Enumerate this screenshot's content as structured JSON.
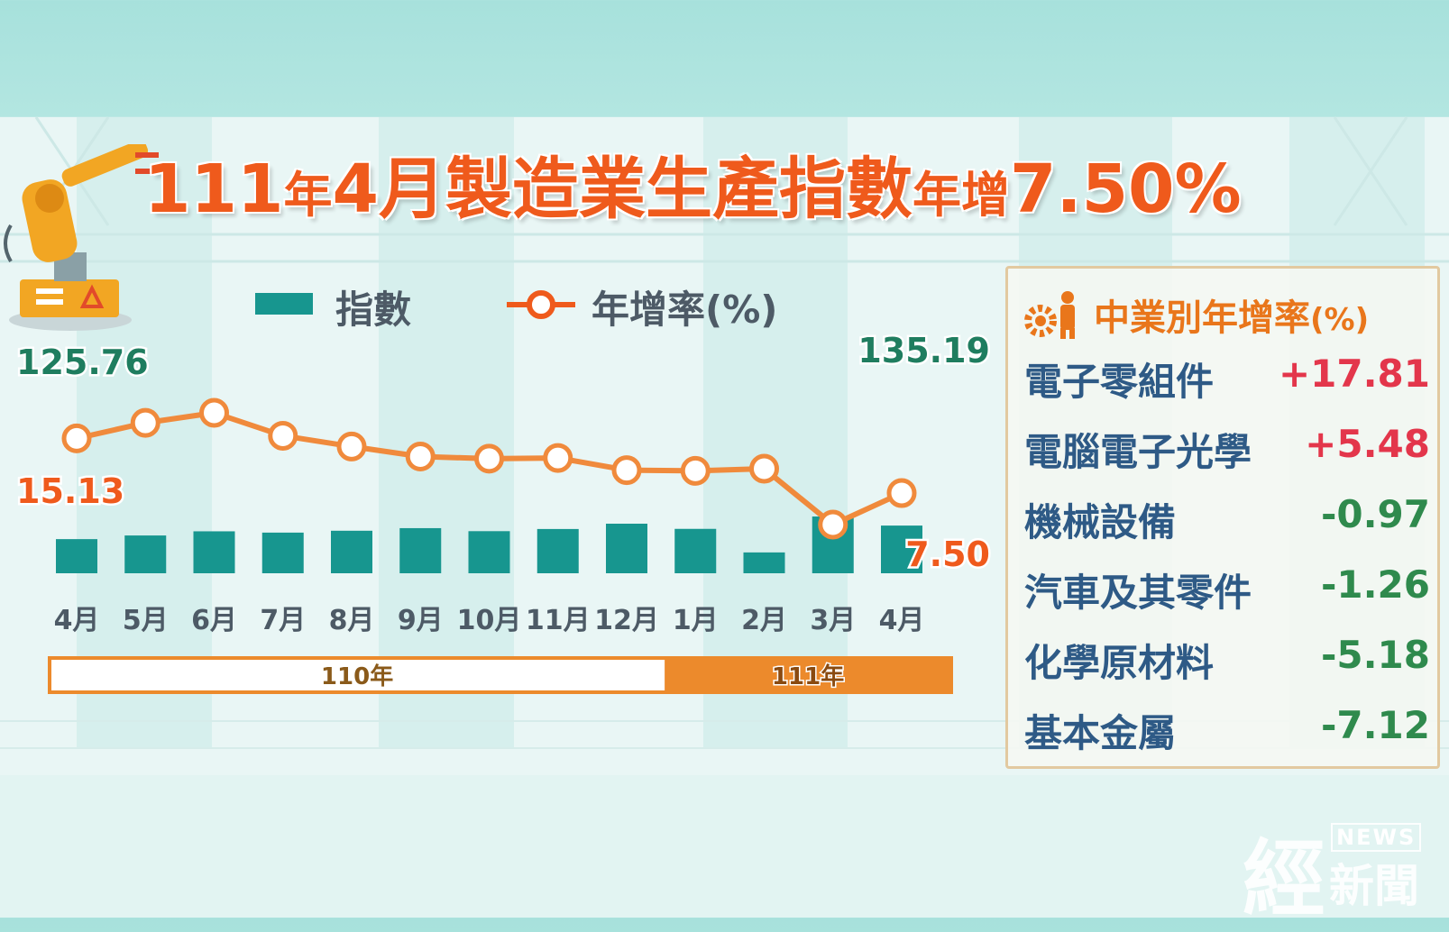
{
  "title_parts": {
    "p1": "111",
    "p2": "年",
    "p3": "4月",
    "p4": "製造業生產指數",
    "p5": "年增",
    "p6": "7.50%"
  },
  "legend": {
    "bar_label": "指數",
    "line_label": "年增率(%)"
  },
  "colors": {
    "bar": "#17968f",
    "line": "#f08a3c",
    "title": "#ef5a1c",
    "positive": "#e3364b",
    "negative": "#2f8a4d",
    "index_label": "#1f7d5f",
    "industry_name": "#2e5a86",
    "year_bar_fill": "#ec8a2c"
  },
  "chart_data": {
    "type": "bar",
    "categories": [
      "4月",
      "5月",
      "6月",
      "7月",
      "8月",
      "9月",
      "10月",
      "11月",
      "12月",
      "1月",
      "2月",
      "3月",
      "4月"
    ],
    "series": [
      {
        "name": "指數",
        "type": "bar",
        "values": [
          125.76,
          128.3,
          131.2,
          130.3,
          131.6,
          133.4,
          131.3,
          132.8,
          136.5,
          132.9,
          116.5,
          141.5,
          135.19
        ]
      },
      {
        "name": "年增率(%)",
        "type": "line",
        "values": [
          15.13,
          17.3,
          18.7,
          15.5,
          14.0,
          12.6,
          12.3,
          12.4,
          10.7,
          10.6,
          10.9,
          3.1,
          7.5
        ]
      }
    ],
    "labels": {
      "first_bar": "125.76",
      "last_bar": "135.19",
      "first_rate": "15.13",
      "last_rate": "7.50"
    },
    "year_groups": [
      {
        "label": "110年",
        "count": 9
      },
      {
        "label": "111年",
        "count": 4
      }
    ]
  },
  "side_panel": {
    "title": "中業別年增率",
    "title_unit": "(%)",
    "rows": [
      {
        "name": "電子零組件",
        "value": "+17.81"
      },
      {
        "name": "電腦電子光學",
        "value": "+5.48"
      },
      {
        "name": "機械設備",
        "value": "-0.97"
      },
      {
        "name": "汽車及其零件",
        "value": "-1.26"
      },
      {
        "name": "化學原材料",
        "value": "-5.18"
      },
      {
        "name": "基本金屬",
        "value": "-7.12"
      }
    ]
  },
  "logo": {
    "main_char": "經",
    "en": "NEWS",
    "zh": "新聞"
  }
}
